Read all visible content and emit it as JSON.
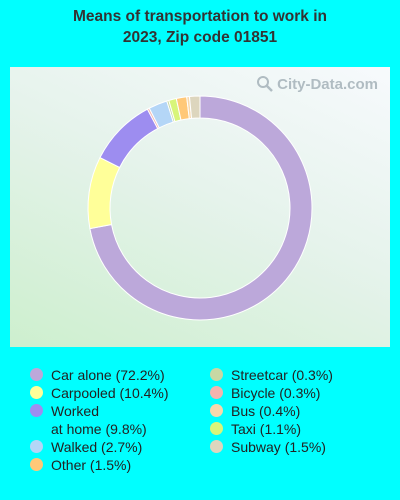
{
  "header": {
    "title_line1": "Means of transportation to work in",
    "title_line2": "2023, Zip code 01851"
  },
  "watermark": {
    "text": "City-Data.com",
    "icon": "magnifier-icon"
  },
  "chart_data": {
    "type": "pie",
    "style": "donut",
    "slices": [
      {
        "label": "Car alone (72.2%)",
        "value": 72.2,
        "color": "#BCA8DA"
      },
      {
        "label": "Carpooled (10.4%)",
        "value": 10.4,
        "color": "#FFFF99"
      },
      {
        "label": "Worked at home (9.8%)",
        "value": 9.8,
        "color": "#9D8DF0"
      },
      {
        "label": "Bicycle (0.3%)",
        "value": 0.3,
        "color": "#F4B4AE"
      },
      {
        "label": "Walked (2.7%)",
        "value": 2.7,
        "color": "#B4D6F7"
      },
      {
        "label": "Streetcar (0.3%)",
        "value": 0.3,
        "color": "#C8D8A4"
      },
      {
        "label": "Taxi (1.1%)",
        "value": 1.1,
        "color": "#D8F57A"
      },
      {
        "label": "Other (1.5%)",
        "value": 1.5,
        "color": "#FFC878"
      },
      {
        "label": "Bus (0.4%)",
        "value": 0.4,
        "color": "#F8D8AC"
      },
      {
        "label": "Subway (1.5%)",
        "value": 1.5,
        "color": "#DDD6BE"
      }
    ],
    "legend_left": [
      {
        "label": "Car alone (72.2%)",
        "color": "#BCA8DA"
      },
      {
        "label": "Carpooled (10.4%)",
        "color": "#FFFF99"
      },
      {
        "label": "Worked at home (9.8%)",
        "color": "#9D8DF0"
      },
      {
        "label": "Walked (2.7%)",
        "color": "#B4D6F7"
      },
      {
        "label": "Other (1.5%)",
        "color": "#FFC878"
      }
    ],
    "legend_right": [
      {
        "label": "Streetcar (0.3%)",
        "color": "#C8D8A4"
      },
      {
        "label": "Bicycle (0.3%)",
        "color": "#F4B4AE"
      },
      {
        "label": "Bus (0.4%)",
        "color": "#F8D8AC"
      },
      {
        "label": "Taxi (1.1%)",
        "color": "#D8F57A"
      },
      {
        "label": "Subway (1.5%)",
        "color": "#DDD6BE"
      }
    ]
  }
}
